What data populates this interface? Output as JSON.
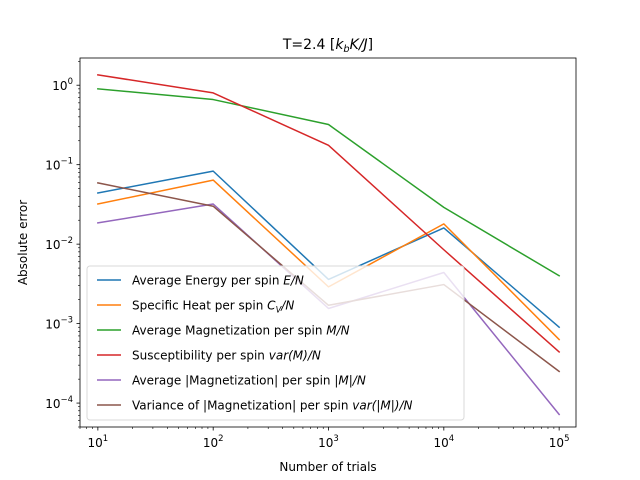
{
  "chart_data": {
    "type": "line",
    "title": "T=2.4 [k_bK/J]",
    "xlabel": "Number of trials",
    "ylabel": "Absolute error",
    "xscale": "log",
    "yscale": "log",
    "xlim": [
      7,
      140000
    ],
    "ylim": [
      5e-05,
      2.2
    ],
    "grid": false,
    "legend_position": "lower-left",
    "x": [
      10,
      100,
      1000,
      10000,
      100000
    ],
    "x_tick_labels": [
      {
        "base": "10",
        "exp": "1",
        "value": 10
      },
      {
        "base": "10",
        "exp": "2",
        "value": 100
      },
      {
        "base": "10",
        "exp": "3",
        "value": 1000
      },
      {
        "base": "10",
        "exp": "4",
        "value": 10000
      },
      {
        "base": "10",
        "exp": "5",
        "value": 100000
      }
    ],
    "y_tick_labels": [
      {
        "base": "10",
        "exp": "−4",
        "value": 0.0001
      },
      {
        "base": "10",
        "exp": "−3",
        "value": 0.001
      },
      {
        "base": "10",
        "exp": "−2",
        "value": 0.01
      },
      {
        "base": "10",
        "exp": "−1",
        "value": 0.1
      },
      {
        "base": "10",
        "exp": "0",
        "value": 1
      }
    ],
    "series": [
      {
        "name": "Average Energy per spin E/N",
        "color": "#1f77b4",
        "values": [
          0.044,
          0.083,
          0.0036,
          0.016,
          0.0009
        ]
      },
      {
        "name": "Specific Heat per spin C_V/N",
        "color": "#ff7f0e",
        "values": [
          0.032,
          0.064,
          0.0029,
          0.018,
          0.00063
        ]
      },
      {
        "name": "Average Magnetization per spin M/N",
        "color": "#2ca02c",
        "values": [
          0.9,
          0.66,
          0.32,
          0.029,
          0.004
        ]
      },
      {
        "name": "Susceptibility per spin var(M)/N",
        "color": "#d62728",
        "values": [
          1.35,
          0.8,
          0.175,
          0.0085,
          0.00044
        ]
      },
      {
        "name": "Average |Magnetization| per spin |M|/N",
        "color": "#9467bd",
        "values": [
          0.0185,
          0.032,
          0.00155,
          0.0044,
          7.2e-05
        ]
      },
      {
        "name": "Variance of |Magnetization| per spin var(|M|)/N",
        "color": "#8c564b",
        "values": [
          0.059,
          0.03,
          0.0017,
          0.0031,
          0.00025
        ]
      }
    ]
  }
}
